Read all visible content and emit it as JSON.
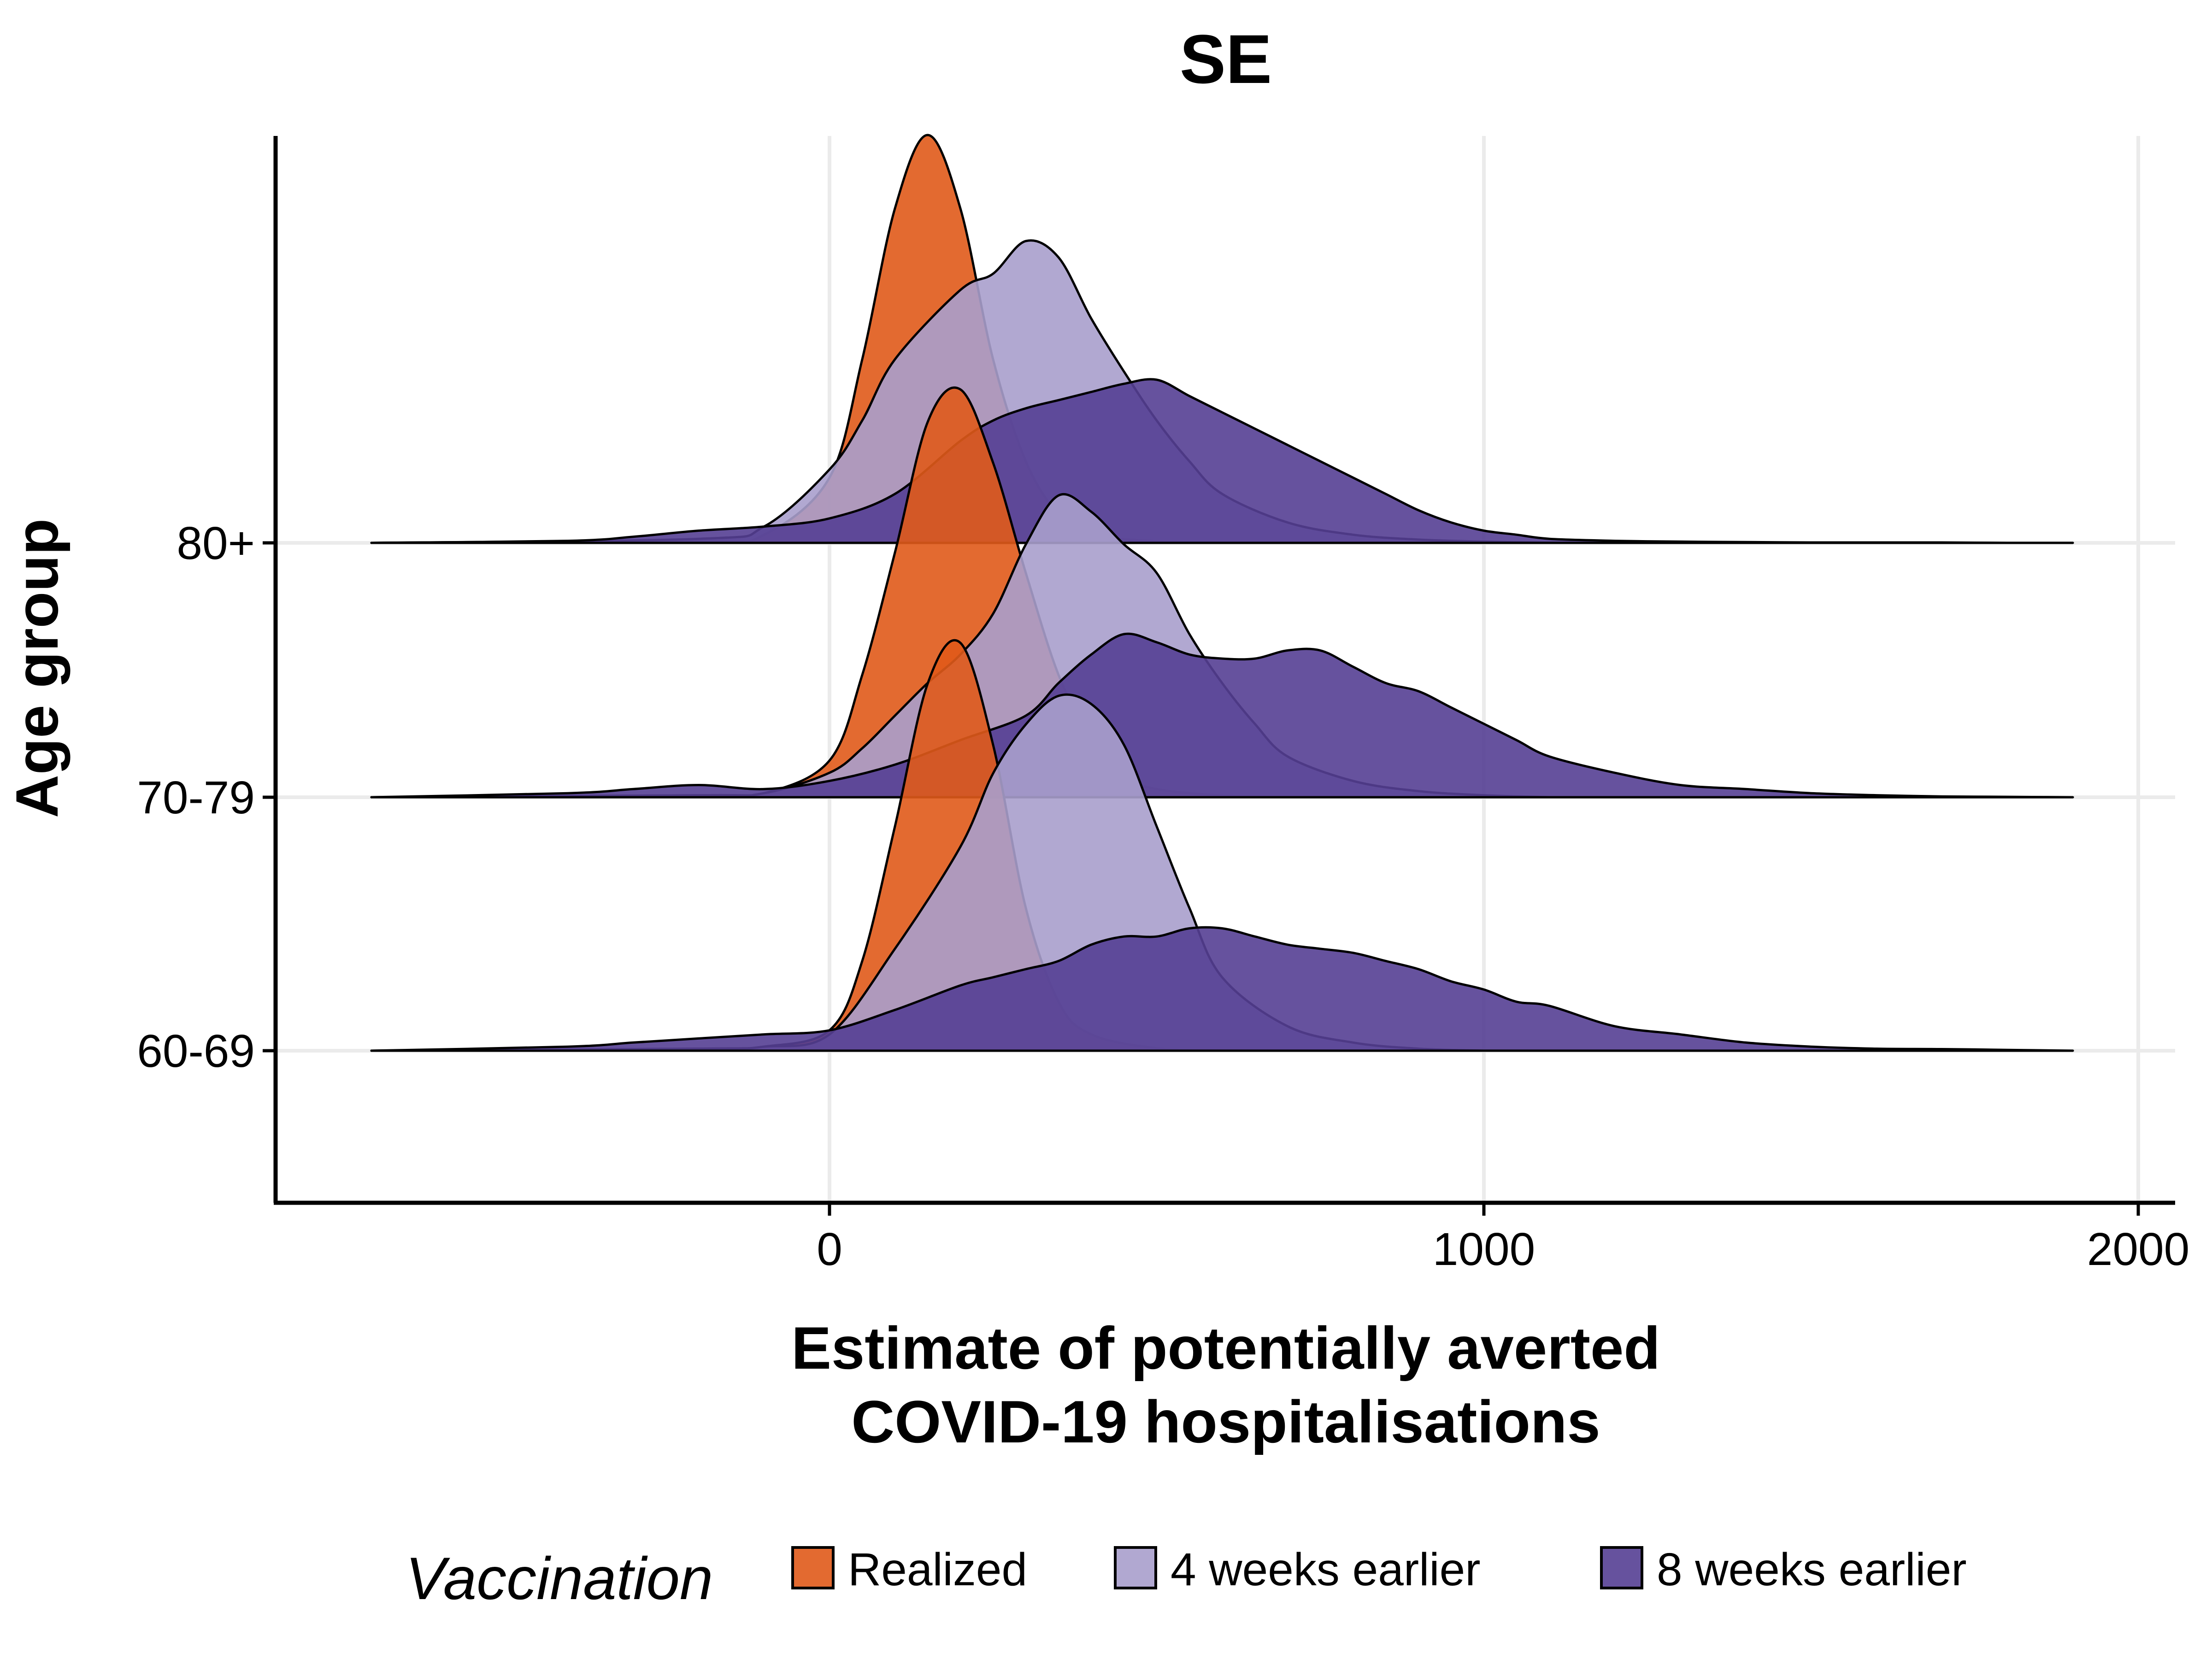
{
  "chart_data": {
    "type": "ridgeline",
    "title": "SE",
    "xlabel": [
      "Estimate of potentially averted",
      "COVID-19 hospitalisations"
    ],
    "ylabel": "Age group",
    "x_ticks": [
      0,
      1000,
      2000
    ],
    "xlim": [
      -850,
      2050
    ],
    "categories": [
      "60-69",
      "70-79",
      "80+"
    ],
    "grid": true,
    "legend": {
      "title": "Vaccination",
      "position": "bottom",
      "entries": [
        "Realized",
        "4 weeks earlier",
        "8 weeks earlier"
      ]
    },
    "colors": {
      "Realized": "#e05a1a",
      "4 weeks earlier": "#a99fcc",
      "8 weeks earlier": "#553f93"
    },
    "series": [
      {
        "name": "Realized",
        "ridges": {
          "80+": {
            "x": [
              -700,
              -200,
              -100,
              0,
              50,
              100,
              150,
              200,
              250,
              300,
              350,
              400,
              500,
              600,
              700
            ],
            "y": [
              0,
              0.005,
              0.02,
              0.16,
              0.45,
              0.82,
              1.0,
              0.82,
              0.45,
              0.2,
              0.07,
              0.02,
              0.004,
              0.001,
              0
            ]
          },
          "70-79": {
            "x": [
              -700,
              -200,
              -100,
              0,
              50,
              100,
              150,
              200,
              250,
              300,
              350,
              400,
              450,
              500,
              600,
              700
            ],
            "y": [
              0,
              0.005,
              0.01,
              0.09,
              0.3,
              0.6,
              0.92,
              1.0,
              0.82,
              0.55,
              0.3,
              0.14,
              0.05,
              0.02,
              0.004,
              0
            ]
          },
          "60-69": {
            "x": [
              -700,
              -200,
              -100,
              0,
              50,
              100,
              150,
              200,
              250,
              300,
              350,
              400,
              500,
              600
            ],
            "y": [
              0,
              0.005,
              0.01,
              0.05,
              0.22,
              0.55,
              0.9,
              1.0,
              0.75,
              0.35,
              0.12,
              0.04,
              0.006,
              0
            ]
          }
        }
      },
      {
        "name": "4 weeks earlier",
        "ridges": {
          "80+": {
            "x": [
              -700,
              -200,
              -100,
              0,
              50,
              100,
              200,
              250,
              300,
              350,
              400,
              450,
              500,
              550,
              600,
              700,
              800,
              900,
              1000,
              1100
            ],
            "y": [
              0,
              0.01,
              0.04,
              0.18,
              0.3,
              0.45,
              0.62,
              0.66,
              0.74,
              0.7,
              0.55,
              0.42,
              0.3,
              0.2,
              0.12,
              0.05,
              0.02,
              0.008,
              0.003,
              0
            ]
          },
          "70-79": {
            "x": [
              -700,
              -200,
              -100,
              0,
              50,
              100,
              150,
              200,
              250,
              300,
              350,
              400,
              450,
              500,
              550,
              600,
              650,
              700,
              800,
              900,
              1000,
              1100
            ],
            "y": [
              0,
              0.005,
              0.01,
              0.06,
              0.12,
              0.2,
              0.28,
              0.35,
              0.45,
              0.62,
              0.74,
              0.7,
              0.62,
              0.55,
              0.4,
              0.28,
              0.18,
              0.1,
              0.04,
              0.015,
              0.005,
              0
            ]
          },
          "60-69": {
            "x": [
              -700,
              -200,
              -100,
              0,
              100,
              200,
              250,
              300,
              350,
              400,
              450,
              500,
              550,
              600,
              700,
              800,
              900,
              1000
            ],
            "y": [
              0,
              0.005,
              0.01,
              0.04,
              0.25,
              0.5,
              0.68,
              0.8,
              0.87,
              0.85,
              0.75,
              0.55,
              0.35,
              0.18,
              0.06,
              0.02,
              0.005,
              0
            ]
          }
        }
      },
      {
        "name": "8 weeks earlier",
        "ridges": {
          "80+": {
            "x": [
              -700,
              -400,
              -300,
              -200,
              -100,
              0,
              100,
              200,
              250,
              300,
              350,
              400,
              450,
              500,
              550,
              600,
              650,
              700,
              750,
              800,
              850,
              900,
              950,
              1000,
              1050,
              1100,
              1200,
              1300,
              1400,
              1500,
              1600,
              1700,
              1800,
              1900
            ],
            "y": [
              0,
              0.005,
              0.015,
              0.03,
              0.04,
              0.06,
              0.12,
              0.25,
              0.3,
              0.33,
              0.35,
              0.37,
              0.39,
              0.4,
              0.36,
              0.32,
              0.28,
              0.24,
              0.2,
              0.16,
              0.12,
              0.08,
              0.05,
              0.03,
              0.02,
              0.01,
              0.005,
              0.003,
              0.002,
              0.001,
              0.001,
              0.001,
              0,
              0
            ]
          },
          "70-79": {
            "x": [
              -700,
              -400,
              -300,
              -200,
              -100,
              0,
              100,
              200,
              300,
              350,
              400,
              450,
              500,
              550,
              600,
              650,
              700,
              750,
              800,
              850,
              900,
              950,
              1000,
              1050,
              1100,
              1200,
              1300,
              1400,
              1500,
              1600,
              1700,
              1800,
              1900
            ],
            "y": [
              0,
              0.01,
              0.02,
              0.03,
              0.02,
              0.04,
              0.08,
              0.14,
              0.2,
              0.28,
              0.35,
              0.4,
              0.38,
              0.35,
              0.34,
              0.34,
              0.36,
              0.36,
              0.32,
              0.28,
              0.26,
              0.22,
              0.18,
              0.14,
              0.1,
              0.06,
              0.03,
              0.02,
              0.01,
              0.005,
              0.002,
              0.001,
              0
            ]
          },
          "60-69": {
            "x": [
              -700,
              -400,
              -300,
              -200,
              -100,
              0,
              100,
              200,
              250,
              300,
              350,
              400,
              450,
              500,
              550,
              600,
              650,
              700,
              750,
              800,
              850,
              900,
              950,
              1000,
              1050,
              1100,
              1200,
              1300,
              1400,
              1500,
              1600,
              1700,
              1800,
              1900
            ],
            "y": [
              0,
              0.01,
              0.02,
              0.03,
              0.04,
              0.05,
              0.1,
              0.16,
              0.18,
              0.2,
              0.22,
              0.26,
              0.28,
              0.28,
              0.3,
              0.3,
              0.28,
              0.26,
              0.25,
              0.24,
              0.22,
              0.2,
              0.17,
              0.15,
              0.12,
              0.11,
              0.06,
              0.04,
              0.02,
              0.01,
              0.005,
              0.004,
              0.002,
              0
            ]
          }
        }
      }
    ]
  }
}
